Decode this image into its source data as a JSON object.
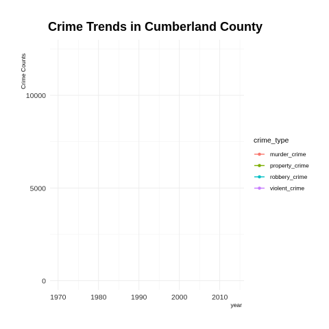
{
  "chart_data": {
    "type": "line",
    "title": "Crime Trends in Cumberland County",
    "xlabel": "year",
    "ylabel": "Crime Counts",
    "xlim": [
      1968,
      2016
    ],
    "ylim": [
      -500,
      13000
    ],
    "x_ticks": [
      1970,
      1980,
      1990,
      2000,
      2010
    ],
    "x_minor_ticks": [
      1975,
      1985,
      1995,
      2005,
      2015
    ],
    "y_ticks": [
      0,
      5000,
      10000
    ],
    "y_minor_ticks": [
      2500,
      7500,
      12500
    ],
    "grid": true,
    "legend": {
      "title": "crime_type",
      "position": "right"
    },
    "series": [
      {
        "name": "murder_crime",
        "color": "#F8766D",
        "values": []
      },
      {
        "name": "property_crime",
        "color": "#7CAE00",
        "values": []
      },
      {
        "name": "robbery_crime",
        "color": "#00BFC4",
        "values": []
      },
      {
        "name": "violent_crime",
        "color": "#C77CFF",
        "values": []
      }
    ]
  }
}
